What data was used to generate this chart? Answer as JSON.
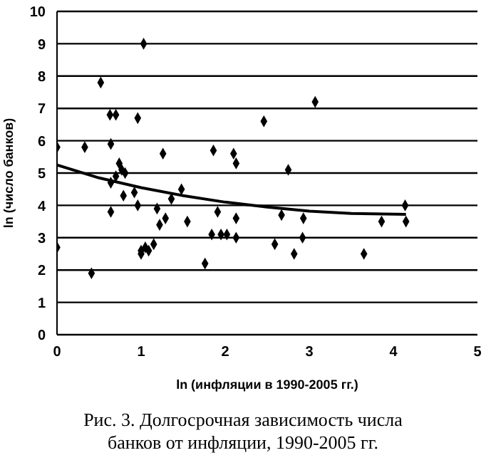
{
  "chart_data": {
    "type": "scatter",
    "xlabel": "ln (инфляции в 1990-2005 гг.)",
    "ylabel": "ln (число банков)",
    "annotations": [
      "Рис. 3. Долгосрочная зависимость числа банков от инфляции, 1990-2005 гг."
    ],
    "xlim": [
      0,
      5
    ],
    "xticks": [
      0,
      1,
      2,
      3,
      4,
      5
    ],
    "ylim": [
      0,
      10
    ],
    "yticks": [
      0,
      1,
      2,
      3,
      4,
      5,
      6,
      7,
      8,
      9,
      10
    ],
    "grid": "y",
    "marker": "diamond",
    "series": [
      {
        "color": "#000000",
        "x": [
          0,
          0,
          0.33,
          0.41,
          0.52,
          0.63,
          0.7,
          0.64,
          0.64,
          0.74,
          0.64,
          0.7,
          0.77,
          0.81,
          0.79,
          0.92,
          0.96,
          0.96,
          1.03,
          1.0,
          1.0,
          1.05,
          1.09,
          1.15,
          1.19,
          1.26,
          1.22,
          1.29,
          1.36,
          1.48,
          1.55,
          1.76,
          1.86,
          1.84,
          1.91,
          1.95,
          2.02,
          2.1,
          2.13,
          2.13,
          2.13,
          2.46,
          2.59,
          2.67,
          2.75,
          2.82,
          2.92,
          2.93,
          3.07,
          3.65,
          3.86,
          4.14,
          4.15
        ],
        "values": [
          5.8,
          2.7,
          5.8,
          1.9,
          7.8,
          6.8,
          6.8,
          5.9,
          3.8,
          5.3,
          4.7,
          4.9,
          5.1,
          5.0,
          4.3,
          4.4,
          6.7,
          4.0,
          9.0,
          2.6,
          2.5,
          2.7,
          2.6,
          2.8,
          3.9,
          5.6,
          3.4,
          3.6,
          4.2,
          4.5,
          3.5,
          2.2,
          5.7,
          3.1,
          3.8,
          3.1,
          3.1,
          5.6,
          5.3,
          3.6,
          3.0,
          6.6,
          2.8,
          3.7,
          5.1,
          2.5,
          3.0,
          3.6,
          7.2,
          2.5,
          3.5,
          4.0,
          3.5
        ]
      },
      {
        "type": "line",
        "color": "#000000",
        "marker": "none",
        "x": [
          0,
          0.5,
          1,
          1.5,
          2,
          2.5,
          3,
          3.5,
          4.15
        ],
        "values": [
          5.25,
          4.85,
          4.55,
          4.3,
          4.1,
          3.95,
          3.82,
          3.75,
          3.72
        ]
      }
    ]
  }
}
